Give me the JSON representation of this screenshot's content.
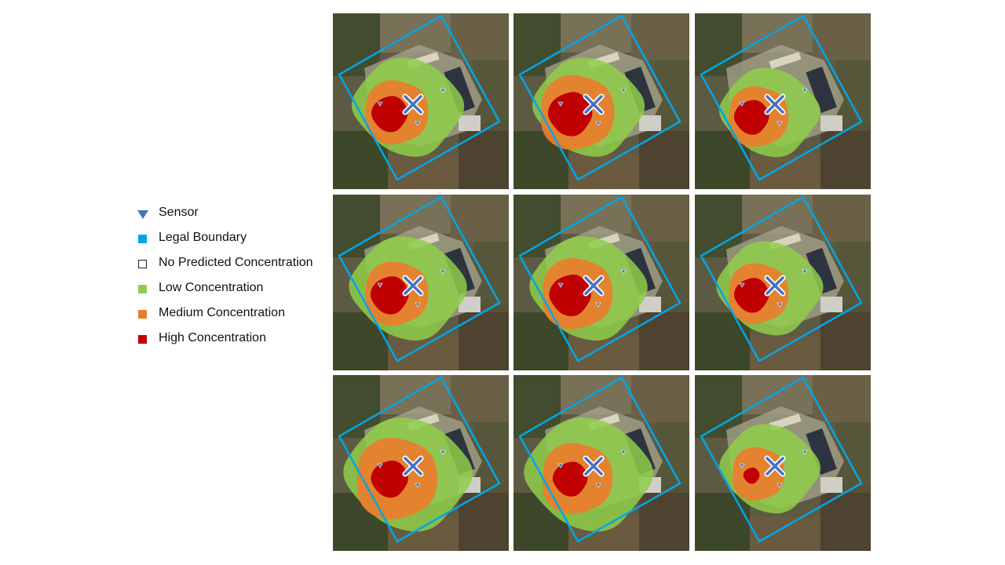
{
  "legend": {
    "items": [
      {
        "label": "Sensor",
        "kind": "sensor",
        "color": "#4472c4"
      },
      {
        "label": "Legal Boundary",
        "kind": "boundary",
        "color": "#00a6e6"
      },
      {
        "label": "No Predicted Concentration",
        "kind": "none",
        "color": "#ffffff"
      },
      {
        "label": "Low Concentration",
        "kind": "low",
        "color": "#8fce4a"
      },
      {
        "label": "Medium Concentration",
        "kind": "med",
        "color": "#ec7d2d"
      },
      {
        "label": "High Concentration",
        "kind": "high",
        "color": "#c00000"
      }
    ]
  },
  "colors": {
    "sensor": "#4472c4",
    "boundary": "#00a6e6",
    "low": "#8fce4a",
    "medium": "#ec7d2d",
    "high": "#c00000",
    "source_marker": "#4472c4"
  },
  "grid": {
    "rows": 3,
    "cols": 3
  },
  "panels": [
    {
      "id": 1,
      "low_scale": 1.0,
      "med_scale": 0.9,
      "high_scale": 0.78,
      "spread_dir": "standard"
    },
    {
      "id": 2,
      "low_scale": 1.0,
      "med_scale": 1.05,
      "high_scale": 0.95,
      "spread_dir": "standard"
    },
    {
      "id": 3,
      "low_scale": 0.9,
      "med_scale": 0.85,
      "high_scale": 0.75,
      "spread_dir": "south"
    },
    {
      "id": 4,
      "low_scale": 1.05,
      "med_scale": 0.9,
      "high_scale": 0.82,
      "spread_dir": "standard"
    },
    {
      "id": 5,
      "low_scale": 1.05,
      "med_scale": 1.0,
      "high_scale": 0.9,
      "spread_dir": "standard"
    },
    {
      "id": 6,
      "low_scale": 0.95,
      "med_scale": 0.85,
      "high_scale": 0.75,
      "spread_dir": "standard"
    },
    {
      "id": 7,
      "low_scale": 1.15,
      "med_scale": 1.15,
      "high_scale": 0.8,
      "spread_dir": "south"
    },
    {
      "id": 8,
      "low_scale": 1.15,
      "med_scale": 1.0,
      "high_scale": 0.75,
      "spread_dir": "south"
    },
    {
      "id": 9,
      "low_scale": 0.9,
      "med_scale": 0.75,
      "high_scale": 0.35,
      "spread_dir": "standard"
    }
  ]
}
